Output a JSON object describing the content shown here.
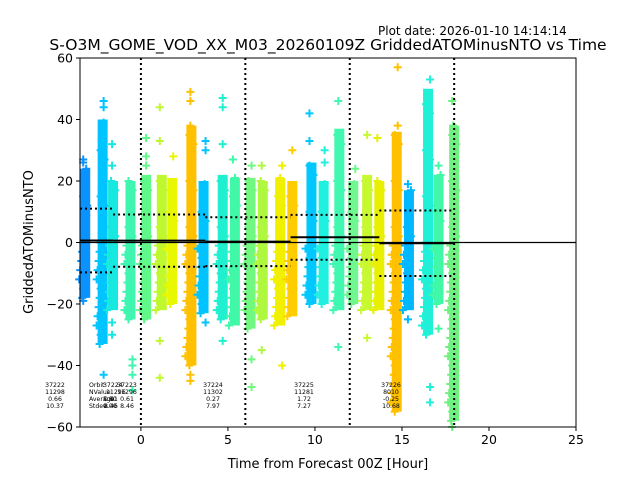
{
  "chart_data": {
    "type": "scatter",
    "title": "S-O3M_GOME_VOD_XX_M03_20260109Z GriddedATOMinusNTO vs Time",
    "plot_date": "Plot date: 2026-01-10 14:14:14",
    "xlabel": "Time from Forecast 00Z [Hour]",
    "ylabel": "GriddedATOMinusNTO",
    "xlim": [
      -3.5,
      25
    ],
    "ylim": [
      -60,
      60
    ],
    "xticks": [
      0,
      5,
      10,
      15,
      20,
      25
    ],
    "xtick_labels": [
      "0",
      "5",
      "10",
      "15",
      "20",
      "25"
    ],
    "yticks": [
      -60,
      -40,
      -20,
      0,
      20,
      40,
      60
    ],
    "ytick_labels": [
      "−60",
      "−40",
      "−20",
      "0",
      "20",
      "40",
      "60"
    ],
    "grid": false,
    "forecast_lines": [
      0,
      6,
      12,
      18
    ],
    "zero_line": 0,
    "columns": [
      {
        "x": -3.2,
        "min": -18,
        "max": 24,
        "color": "#0a93ff",
        "out": [
          27,
          26,
          -19
        ]
      },
      {
        "x": -2.2,
        "min": -33,
        "max": 40,
        "color": "#00c4ff",
        "out": [
          46,
          44,
          -43
        ]
      },
      {
        "x": -1.6,
        "min": -22,
        "max": 20,
        "color": "#17e8e0",
        "out": [
          32,
          25,
          -26,
          -30
        ]
      },
      {
        "x": -0.6,
        "min": -25,
        "max": 20,
        "color": "#3ff5b0",
        "out": [
          -40,
          -38,
          -43,
          -48
        ]
      },
      {
        "x": 0.3,
        "min": -25,
        "max": 22,
        "color": "#60f888",
        "out": [
          34,
          28,
          25
        ]
      },
      {
        "x": 1.2,
        "min": -22,
        "max": 22,
        "color": "#c0f830",
        "out": [
          44,
          33,
          -32,
          -44
        ]
      },
      {
        "x": 1.8,
        "min": -20,
        "max": 21,
        "color": "#e8f800",
        "out": [
          28
        ]
      },
      {
        "x": 2.9,
        "min": -40,
        "max": 38,
        "color": "#ffc000",
        "out": [
          49,
          46,
          -45,
          -43
        ]
      },
      {
        "x": 3.6,
        "min": -23,
        "max": 20,
        "color": "#00c4ff",
        "out": [
          33,
          30,
          -26
        ]
      },
      {
        "x": 4.7,
        "min": -25,
        "max": 22,
        "color": "#20f0d0",
        "out": [
          47,
          44,
          32,
          -32
        ]
      },
      {
        "x": 5.4,
        "min": -27,
        "max": 21,
        "color": "#40f8a8",
        "out": [
          27
        ]
      },
      {
        "x": 6.3,
        "min": -28,
        "max": 21,
        "color": "#70f880",
        "out": [
          25,
          -38,
          -47
        ]
      },
      {
        "x": 7.0,
        "min": -25,
        "max": 20,
        "color": "#b0f840",
        "out": [
          25,
          -35
        ]
      },
      {
        "x": 8.0,
        "min": -27,
        "max": 21,
        "color": "#f0f000",
        "out": [
          25,
          -40
        ]
      },
      {
        "x": 8.7,
        "min": -24,
        "max": 20,
        "color": "#ffcc00",
        "out": [
          30
        ]
      },
      {
        "x": 9.8,
        "min": -20,
        "max": 26,
        "color": "#00c8ff",
        "out": [
          42,
          33
        ]
      },
      {
        "x": 10.5,
        "min": -20,
        "max": 20,
        "color": "#20f0e0",
        "out": [
          30,
          26
        ]
      },
      {
        "x": 11.4,
        "min": -22,
        "max": 37,
        "color": "#40f8b0",
        "out": [
          46,
          -34
        ]
      },
      {
        "x": 12.2,
        "min": -20,
        "max": 20,
        "color": "#70f890",
        "out": [
          24
        ]
      },
      {
        "x": 13.0,
        "min": -22,
        "max": 22,
        "color": "#c8f830",
        "out": [
          35,
          -31
        ]
      },
      {
        "x": 13.7,
        "min": -22,
        "max": 20,
        "color": "#e8f000",
        "out": [
          34
        ]
      },
      {
        "x": 14.7,
        "min": -55,
        "max": 36,
        "color": "#ffc000",
        "out": [
          57,
          38
        ]
      },
      {
        "x": 15.4,
        "min": -22,
        "max": 17,
        "color": "#00b8ff",
        "out": [
          19,
          -25
        ]
      },
      {
        "x": 16.5,
        "min": -30,
        "max": 50,
        "color": "#20f0d8",
        "out": [
          53,
          -52,
          -47
        ]
      },
      {
        "x": 17.1,
        "min": -20,
        "max": 22,
        "color": "#40f8a8",
        "out": [
          25,
          -28
        ]
      },
      {
        "x": 18.0,
        "min": -58,
        "max": 38,
        "color": "#70f080",
        "out": [
          46,
          -60
        ]
      }
    ],
    "orbit_stats": [
      {
        "x0": -3.5,
        "x1": -1.6,
        "mean": 0.66,
        "plus": 11.0,
        "minus": -9.7
      },
      {
        "x0": -1.6,
        "x1": 3.7,
        "mean": 0.61,
        "plus": 9.1,
        "minus": -7.9
      },
      {
        "x0": 3.7,
        "x1": 8.6,
        "mean": 0.27,
        "plus": 8.2,
        "minus": -7.7
      },
      {
        "x0": 8.6,
        "x1": 13.7,
        "mean": 1.72,
        "plus": 9.0,
        "minus": -5.6
      },
      {
        "x0": 13.7,
        "x1": 18.0,
        "mean": -0.25,
        "plus": 10.4,
        "minus": -10.9
      }
    ],
    "annotations": {
      "header_lines": [
        "Orbit",
        "NValue",
        "Average",
        "Stdev"
      ],
      "header_overlap": [
        "37224",
        "11296",
        "0.61",
        "8.46"
      ],
      "orbits": [
        {
          "orbit": "37222",
          "nvalue": "11298",
          "average": "0.66",
          "stdev": "10.37"
        },
        {
          "orbit": "37223",
          "nvalue": "11296",
          "average": "0.61",
          "stdev": "8.46"
        },
        {
          "orbit": "37224",
          "nvalue": "11302",
          "average": "0.27",
          "stdev": "7.97"
        },
        {
          "orbit": "37225",
          "nvalue": "11281",
          "average": "1.72",
          "stdev": "7.27"
        },
        {
          "orbit": "37226",
          "nvalue": "8010",
          "average": "-0.25",
          "stdev": "10.68"
        }
      ],
      "extra_overlap_stats": [
        "5.80",
        "0.00"
      ]
    }
  }
}
